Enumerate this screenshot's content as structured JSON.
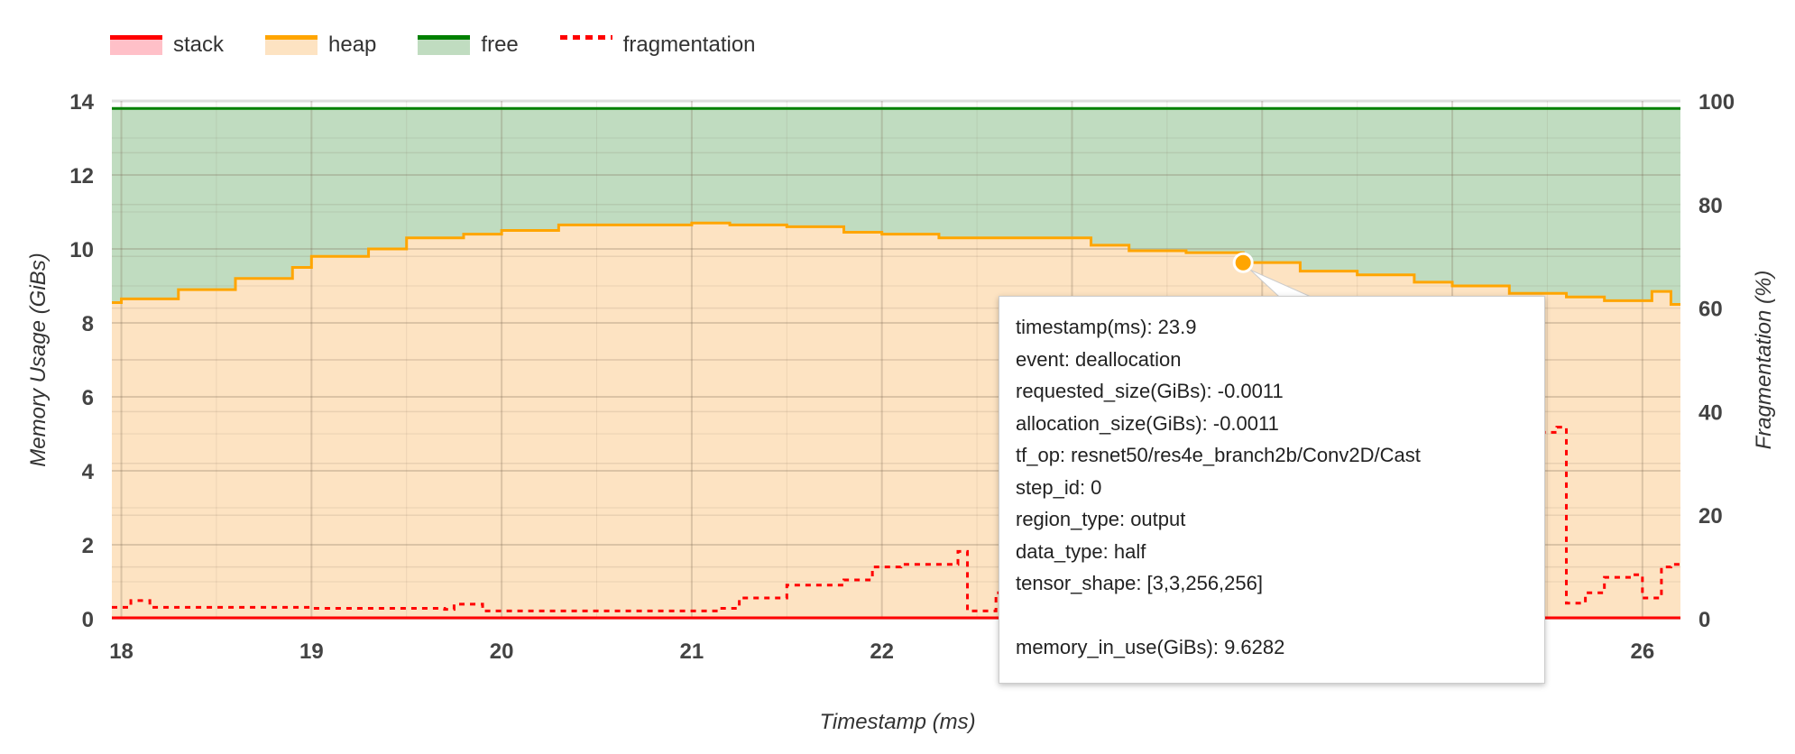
{
  "legend": [
    {
      "label": "stack",
      "line": "#ff0000",
      "fill": "#ffc0c8"
    },
    {
      "label": "heap",
      "line": "#ffa500",
      "fill": "#fde3c2"
    },
    {
      "label": "free",
      "line": "#008000",
      "fill": "#c0dcc0"
    },
    {
      "label": "fragmentation",
      "line": "#ff0000",
      "dashed": true
    }
  ],
  "tooltip": {
    "lines": [
      "timestamp(ms): 23.9",
      "event: deallocation",
      "requested_size(GiBs): -0.0011",
      "allocation_size(GiBs): -0.0011",
      "tf_op: resnet50/res4e_branch2b/Conv2D/Cast",
      "step_id: 0",
      "region_type: output",
      "data_type: half",
      "tensor_shape: [3,3,256,256]",
      "",
      "memory_in_use(GiBs): 9.6282"
    ]
  },
  "chart_data": {
    "type": "area",
    "xlabel": "Timestamp (ms)",
    "ylabel": "Memory Usage (GiBs)",
    "y2label": "Fragmentation (%)",
    "xlim": [
      17.95,
      26.2
    ],
    "ylim": [
      0,
      14
    ],
    "y2lim": [
      0,
      100
    ],
    "xticks": [
      18,
      19,
      20,
      21,
      22,
      23,
      24,
      25,
      26
    ],
    "xticks_visible": [
      "18",
      "19",
      "20",
      "21",
      "22",
      "",
      "",
      "",
      "26"
    ],
    "yticks": [
      0,
      2,
      4,
      6,
      8,
      10,
      12,
      14
    ],
    "y2ticks": [
      0,
      20,
      40,
      60,
      80,
      100
    ],
    "grid": true,
    "legend_position": "top-left",
    "highlight": {
      "x": 23.9,
      "y": 9.6282
    },
    "series": [
      {
        "name": "stack",
        "axis": "left",
        "color": "#ff0000",
        "x": [
          17.95,
          26.2
        ],
        "y": [
          0,
          0
        ]
      },
      {
        "name": "heap",
        "axis": "left",
        "color": "#ffa500",
        "x": [
          17.95,
          18.0,
          18.3,
          18.6,
          18.9,
          19.0,
          19.3,
          19.5,
          19.8,
          20.0,
          20.3,
          20.6,
          21.0,
          21.2,
          21.5,
          21.8,
          22.0,
          22.3,
          22.6,
          22.9,
          23.1,
          23.3,
          23.6,
          23.9,
          24.2,
          24.5,
          24.8,
          25.0,
          25.3,
          25.6,
          25.8,
          26.0,
          26.05,
          26.15,
          26.2
        ],
        "y": [
          8.55,
          8.65,
          8.9,
          9.2,
          9.5,
          9.8,
          10.0,
          10.3,
          10.4,
          10.5,
          10.65,
          10.65,
          10.7,
          10.65,
          10.6,
          10.45,
          10.4,
          10.3,
          10.3,
          10.3,
          10.1,
          9.95,
          9.9,
          9.63,
          9.4,
          9.3,
          9.1,
          9.0,
          8.8,
          8.7,
          8.6,
          8.6,
          8.85,
          8.5,
          8.5
        ]
      },
      {
        "name": "free",
        "axis": "left",
        "color": "#008000",
        "x": [
          17.95,
          26.2
        ],
        "y": [
          13.8,
          13.8
        ]
      },
      {
        "name": "fragmentation",
        "axis": "right",
        "color": "#ff0000",
        "dashed": true,
        "x": [
          17.95,
          18.05,
          18.15,
          19.0,
          19.7,
          19.75,
          19.9,
          21.0,
          21.15,
          21.25,
          21.5,
          21.8,
          21.95,
          22.1,
          22.4,
          22.45,
          22.6,
          23.0,
          24.0,
          25.0,
          25.4,
          25.55,
          25.6,
          25.7,
          25.8,
          25.95,
          26.0,
          26.1,
          26.15,
          26.2
        ],
        "y": [
          2.2,
          3.5,
          2.2,
          2.0,
          1.8,
          2.8,
          1.5,
          1.5,
          2.0,
          4.0,
          6.5,
          7.5,
          10.0,
          10.5,
          13.0,
          1.5,
          5.0,
          8.0,
          15.0,
          30.0,
          36.0,
          37.0,
          3.0,
          5.0,
          8.0,
          8.5,
          4.0,
          10.0,
          10.5,
          11.0
        ]
      }
    ]
  }
}
